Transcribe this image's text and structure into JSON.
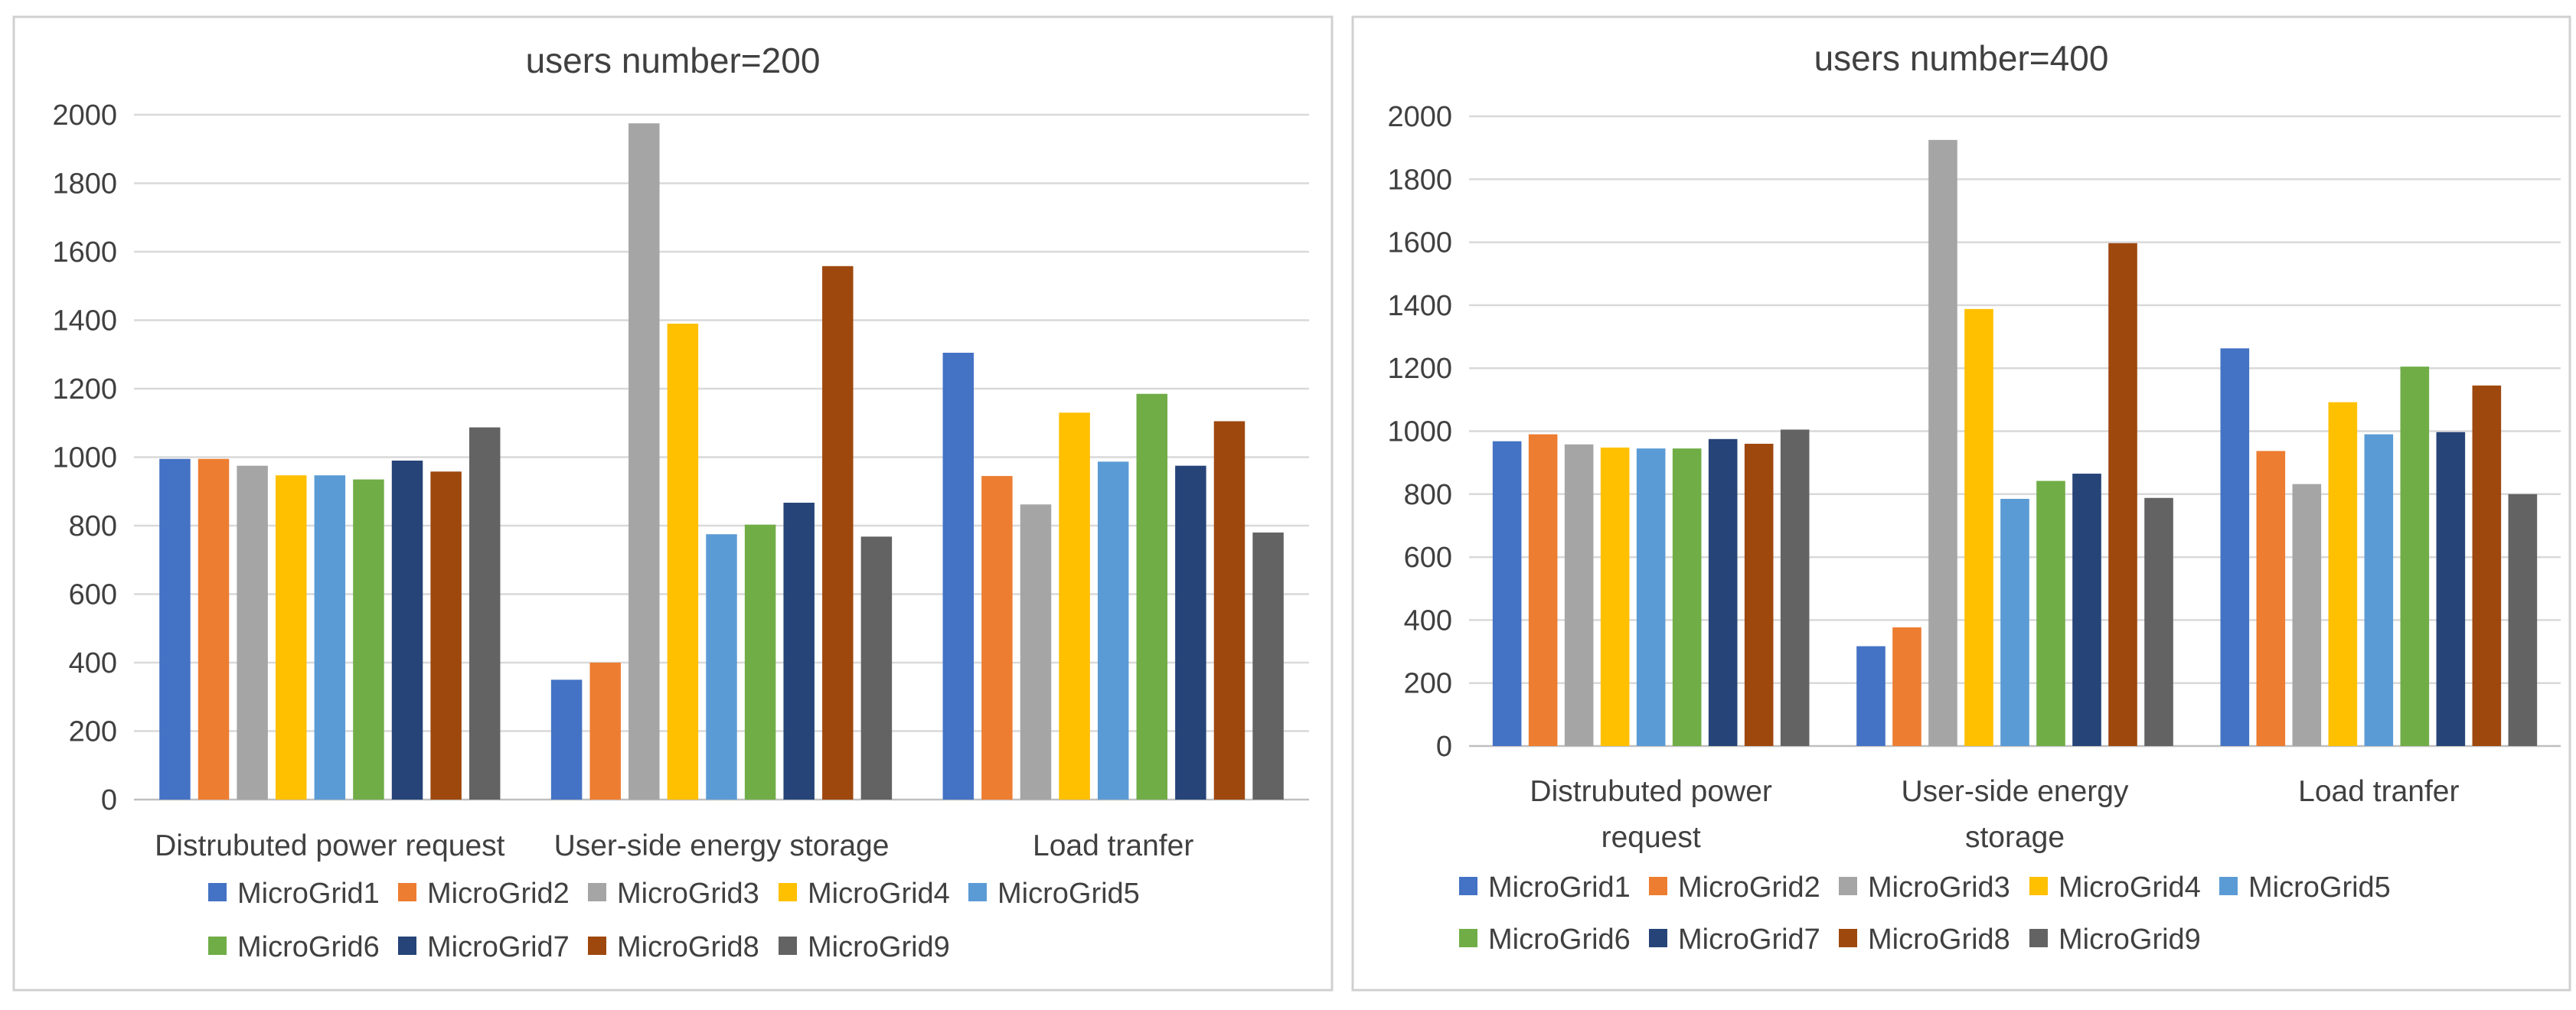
{
  "series_colors": [
    "#4472c4",
    "#ed7d31",
    "#a5a5a5",
    "#ffc000",
    "#5b9bd5",
    "#70ad47",
    "#264478",
    "#9e480e",
    "#636363"
  ],
  "chart_data": [
    {
      "type": "bar",
      "title": "users number=200",
      "categories": [
        "Distrubuted power request",
        "User-side energy storage",
        "Load tranfer"
      ],
      "ylim": [
        0,
        2000
      ],
      "yticks": [
        0,
        200,
        400,
        600,
        800,
        1000,
        1200,
        1400,
        1600,
        1800,
        2000
      ],
      "grid": true,
      "legend": "bottom",
      "series": [
        {
          "name": "MicroGrid1",
          "values": [
            995,
            350,
            1305
          ]
        },
        {
          "name": "MicroGrid2",
          "values": [
            995,
            400,
            945
          ]
        },
        {
          "name": "MicroGrid3",
          "values": [
            975,
            1975,
            862
          ]
        },
        {
          "name": "MicroGrid4",
          "values": [
            947,
            1390,
            1130
          ]
        },
        {
          "name": "MicroGrid5",
          "values": [
            947,
            775,
            987
          ]
        },
        {
          "name": "MicroGrid6",
          "values": [
            935,
            803,
            1185
          ]
        },
        {
          "name": "MicroGrid7",
          "values": [
            990,
            867,
            975
          ]
        },
        {
          "name": "MicroGrid8",
          "values": [
            958,
            1558,
            1105
          ]
        },
        {
          "name": "MicroGrid9",
          "values": [
            1087,
            768,
            780
          ]
        }
      ]
    },
    {
      "type": "bar",
      "title": "users number=400",
      "categories": [
        "Distrubuted power request",
        "User-side energy storage",
        "Load tranfer"
      ],
      "ylim": [
        0,
        2000
      ],
      "yticks": [
        0,
        200,
        400,
        600,
        800,
        1000,
        1200,
        1400,
        1600,
        1800,
        2000
      ],
      "grid": true,
      "legend": "bottom",
      "series": [
        {
          "name": "MicroGrid1",
          "values": [
            968,
            317,
            1263
          ]
        },
        {
          "name": "MicroGrid2",
          "values": [
            990,
            377,
            937
          ]
        },
        {
          "name": "MicroGrid3",
          "values": [
            958,
            1925,
            832
          ]
        },
        {
          "name": "MicroGrid4",
          "values": [
            948,
            1388,
            1092
          ]
        },
        {
          "name": "MicroGrid5",
          "values": [
            945,
            785,
            990
          ]
        },
        {
          "name": "MicroGrid6",
          "values": [
            945,
            842,
            1205
          ]
        },
        {
          "name": "MicroGrid7",
          "values": [
            975,
            865,
            997
          ]
        },
        {
          "name": "MicroGrid8",
          "values": [
            960,
            1597,
            1145
          ]
        },
        {
          "name": "MicroGrid9",
          "values": [
            1005,
            788,
            800
          ]
        }
      ]
    }
  ]
}
